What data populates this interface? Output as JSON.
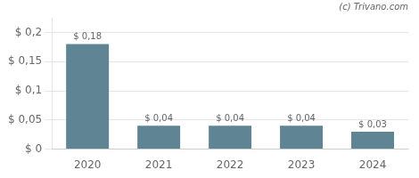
{
  "chart_data": {
    "type": "bar",
    "categories": [
      "2020",
      "2021",
      "2022",
      "2023",
      "2024"
    ],
    "values": [
      0.18,
      0.04,
      0.04,
      0.04,
      0.03
    ],
    "value_labels": [
      "$ 0,18",
      "$ 0,04",
      "$ 0,04",
      "$ 0,04",
      "$ 0,03"
    ],
    "data_labels": true,
    "color": "#5f8595",
    "ylim": [
      0,
      0.225
    ],
    "yticks": [
      {
        "value": 0,
        "label": "$ 0"
      },
      {
        "value": 0.05,
        "label": "$ 0,05"
      },
      {
        "value": 0.1,
        "label": "$ 0,1"
      },
      {
        "value": 0.15,
        "label": "$ 0,15"
      },
      {
        "value": 0.2,
        "label": "$ 0,2"
      }
    ],
    "grid": true,
    "annotations": [
      "(c) Trivano.com"
    ]
  }
}
